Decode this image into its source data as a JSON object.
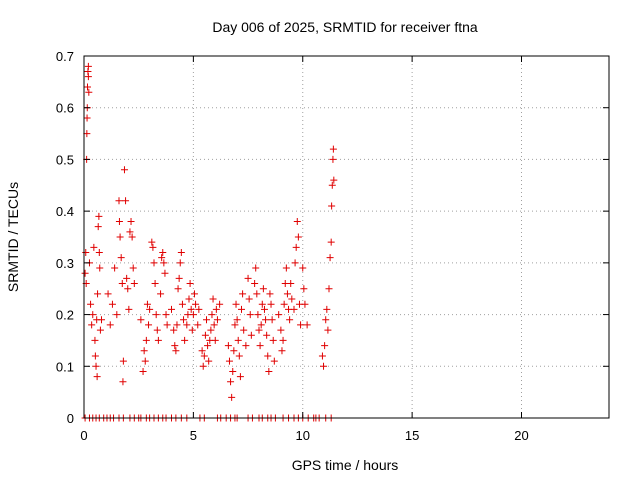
{
  "chart_data": {
    "type": "scatter",
    "title": "Day 006 of 2025, SRMTID for receiver ftna",
    "xlabel": "GPS time / hours",
    "ylabel": "SRMTID / TECUs",
    "xlim": [
      0,
      24
    ],
    "ylim": [
      0,
      0.7
    ],
    "x_ticks": [
      0,
      5,
      10,
      15,
      20
    ],
    "x_tick_labels": [
      "0",
      "5",
      "10",
      "15",
      "20"
    ],
    "y_ticks": [
      0,
      0.1,
      0.2,
      0.3,
      0.4,
      0.5,
      0.6,
      0.7
    ],
    "y_tick_labels": [
      "0",
      "0.1",
      "0.2",
      "0.3",
      "0.4",
      "0.5",
      "0.6",
      "0.7"
    ],
    "grid": true,
    "marker": "+",
    "color": "#e00000",
    "series": [
      {
        "name": "SRMTID",
        "points": [
          [
            0.05,
            0.28
          ],
          [
            0.08,
            0.32
          ],
          [
            0.1,
            0.26
          ],
          [
            0.12,
            0.5
          ],
          [
            0.13,
            0.55
          ],
          [
            0.15,
            0.6
          ],
          [
            0.16,
            0.64
          ],
          [
            0.18,
            0.67
          ],
          [
            0.2,
            0.68
          ],
          [
            0.2,
            0.66
          ],
          [
            0.22,
            0.63
          ],
          [
            0.14,
            0.58
          ],
          [
            0.25,
            0.3
          ],
          [
            0.3,
            0.22
          ],
          [
            0.35,
            0.18
          ],
          [
            0.4,
            0.2
          ],
          [
            0.45,
            0.33
          ],
          [
            0.5,
            0.15
          ],
          [
            0.52,
            0.12
          ],
          [
            0.55,
            0.1
          ],
          [
            0.58,
            0.19
          ],
          [
            0.6,
            0.08
          ],
          [
            0.62,
            0.24
          ],
          [
            0.65,
            0.37
          ],
          [
            0.68,
            0.39
          ],
          [
            0.7,
            0.32
          ],
          [
            0.72,
            0.29
          ],
          [
            0.75,
            0.17
          ],
          [
            0.8,
            0.19
          ],
          [
            1.1,
            0.24
          ],
          [
            1.2,
            0.18
          ],
          [
            1.3,
            0.22
          ],
          [
            1.4,
            0.29
          ],
          [
            1.5,
            0.2
          ],
          [
            1.6,
            0.42
          ],
          [
            1.62,
            0.38
          ],
          [
            1.65,
            0.35
          ],
          [
            1.7,
            0.31
          ],
          [
            1.75,
            0.26
          ],
          [
            1.78,
            0.07
          ],
          [
            1.8,
            0.11
          ],
          [
            1.85,
            0.48
          ],
          [
            1.9,
            0.42
          ],
          [
            1.95,
            0.27
          ],
          [
            2.0,
            0.25
          ],
          [
            2.05,
            0.21
          ],
          [
            2.1,
            0.36
          ],
          [
            2.15,
            0.38
          ],
          [
            2.2,
            0.35
          ],
          [
            2.25,
            0.29
          ],
          [
            2.3,
            0.26
          ],
          [
            2.6,
            0.19
          ],
          [
            2.7,
            0.09
          ],
          [
            2.75,
            0.13
          ],
          [
            2.8,
            0.11
          ],
          [
            2.85,
            0.15
          ],
          [
            2.9,
            0.22
          ],
          [
            2.95,
            0.18
          ],
          [
            3.0,
            0.21
          ],
          [
            3.1,
            0.34
          ],
          [
            3.15,
            0.33
          ],
          [
            3.2,
            0.3
          ],
          [
            3.25,
            0.26
          ],
          [
            3.3,
            0.2
          ],
          [
            3.35,
            0.17
          ],
          [
            3.4,
            0.15
          ],
          [
            3.5,
            0.24
          ],
          [
            3.55,
            0.31
          ],
          [
            3.6,
            0.32
          ],
          [
            3.65,
            0.3
          ],
          [
            3.7,
            0.28
          ],
          [
            3.75,
            0.2
          ],
          [
            3.8,
            0.18
          ],
          [
            4.0,
            0.21
          ],
          [
            4.1,
            0.17
          ],
          [
            4.15,
            0.14
          ],
          [
            4.2,
            0.13
          ],
          [
            4.25,
            0.18
          ],
          [
            4.3,
            0.25
          ],
          [
            4.35,
            0.27
          ],
          [
            4.4,
            0.3
          ],
          [
            4.45,
            0.32
          ],
          [
            4.5,
            0.22
          ],
          [
            4.55,
            0.19
          ],
          [
            4.6,
            0.15
          ],
          [
            4.7,
            0.18
          ],
          [
            4.75,
            0.2
          ],
          [
            4.8,
            0.23
          ],
          [
            4.85,
            0.26
          ],
          [
            4.9,
            0.21
          ],
          [
            4.95,
            0.17
          ],
          [
            5.0,
            0.2
          ],
          [
            5.05,
            0.24
          ],
          [
            5.1,
            0.22
          ],
          [
            5.2,
            0.18
          ],
          [
            5.25,
            0.21
          ],
          [
            5.4,
            0.13
          ],
          [
            5.45,
            0.1
          ],
          [
            5.5,
            0.12
          ],
          [
            5.55,
            0.16
          ],
          [
            5.6,
            0.19
          ],
          [
            5.65,
            0.14
          ],
          [
            5.7,
            0.11
          ],
          [
            5.75,
            0.15
          ],
          [
            5.8,
            0.17
          ],
          [
            5.85,
            0.2
          ],
          [
            5.9,
            0.23
          ],
          [
            5.95,
            0.18
          ],
          [
            6.0,
            0.15
          ],
          [
            6.05,
            0.21
          ],
          [
            6.1,
            0.19
          ],
          [
            6.2,
            0.22
          ],
          [
            6.6,
            0.14
          ],
          [
            6.65,
            0.11
          ],
          [
            6.7,
            0.07
          ],
          [
            6.75,
            0.04
          ],
          [
            6.8,
            0.09
          ],
          [
            6.85,
            0.13
          ],
          [
            6.9,
            0.18
          ],
          [
            6.95,
            0.22
          ],
          [
            7.0,
            0.19
          ],
          [
            7.05,
            0.15
          ],
          [
            7.1,
            0.12
          ],
          [
            7.15,
            0.08
          ],
          [
            7.2,
            0.21
          ],
          [
            7.25,
            0.24
          ],
          [
            7.3,
            0.17
          ],
          [
            7.4,
            0.14
          ],
          [
            7.5,
            0.27
          ],
          [
            7.55,
            0.23
          ],
          [
            7.6,
            0.2
          ],
          [
            7.65,
            0.16
          ],
          [
            7.8,
            0.26
          ],
          [
            7.85,
            0.29
          ],
          [
            7.9,
            0.24
          ],
          [
            7.95,
            0.2
          ],
          [
            8.0,
            0.17
          ],
          [
            8.05,
            0.14
          ],
          [
            8.1,
            0.18
          ],
          [
            8.15,
            0.22
          ],
          [
            8.2,
            0.25
          ],
          [
            8.25,
            0.21
          ],
          [
            8.3,
            0.19
          ],
          [
            8.35,
            0.16
          ],
          [
            8.4,
            0.12
          ],
          [
            8.45,
            0.09
          ],
          [
            8.5,
            0.24
          ],
          [
            8.55,
            0.22
          ],
          [
            8.6,
            0.19
          ],
          [
            8.65,
            0.15
          ],
          [
            8.7,
            0.11
          ],
          [
            8.9,
            0.2
          ],
          [
            9.0,
            0.17
          ],
          [
            9.05,
            0.13
          ],
          [
            9.1,
            0.15
          ],
          [
            9.15,
            0.22
          ],
          [
            9.2,
            0.26
          ],
          [
            9.25,
            0.29
          ],
          [
            9.3,
            0.24
          ],
          [
            9.35,
            0.21
          ],
          [
            9.4,
            0.19
          ],
          [
            9.45,
            0.26
          ],
          [
            9.5,
            0.23
          ],
          [
            9.6,
            0.21
          ],
          [
            9.65,
            0.3
          ],
          [
            9.7,
            0.33
          ],
          [
            9.75,
            0.38
          ],
          [
            9.8,
            0.35
          ],
          [
            9.85,
            0.22
          ],
          [
            9.9,
            0.18
          ],
          [
            10.0,
            0.29
          ],
          [
            10.05,
            0.25
          ],
          [
            10.1,
            0.22
          ],
          [
            10.2,
            0.18
          ],
          [
            10.9,
            0.12
          ],
          [
            10.95,
            0.1
          ],
          [
            11.0,
            0.14
          ],
          [
            11.05,
            0.19
          ],
          [
            11.1,
            0.21
          ],
          [
            11.15,
            0.17
          ],
          [
            11.2,
            0.25
          ],
          [
            11.25,
            0.31
          ],
          [
            11.3,
            0.34
          ],
          [
            11.32,
            0.41
          ],
          [
            11.35,
            0.45
          ],
          [
            11.38,
            0.5
          ],
          [
            11.4,
            0.52
          ],
          [
            11.42,
            0.46
          ],
          [
            0.05,
            0
          ],
          [
            0.25,
            0
          ],
          [
            0.4,
            0
          ],
          [
            0.55,
            0
          ],
          [
            0.7,
            0
          ],
          [
            0.9,
            0
          ],
          [
            1.05,
            0
          ],
          [
            1.2,
            0
          ],
          [
            1.35,
            0
          ],
          [
            1.6,
            0
          ],
          [
            1.8,
            0
          ],
          [
            2.1,
            0
          ],
          [
            2.3,
            0
          ],
          [
            2.5,
            0
          ],
          [
            2.6,
            0
          ],
          [
            2.85,
            0
          ],
          [
            3.0,
            0
          ],
          [
            3.2,
            0
          ],
          [
            3.4,
            0
          ],
          [
            3.6,
            0
          ],
          [
            3.75,
            0
          ],
          [
            4.0,
            0
          ],
          [
            4.2,
            0
          ],
          [
            4.45,
            0
          ],
          [
            4.7,
            0
          ],
          [
            5.3,
            0
          ],
          [
            5.5,
            0
          ],
          [
            6.1,
            0
          ],
          [
            6.25,
            0
          ],
          [
            6.5,
            0
          ],
          [
            6.7,
            0
          ],
          [
            6.9,
            0
          ],
          [
            7.0,
            0
          ],
          [
            7.5,
            0
          ],
          [
            7.7,
            0
          ],
          [
            8.0,
            0
          ],
          [
            8.15,
            0
          ],
          [
            8.4,
            0
          ],
          [
            8.55,
            0
          ],
          [
            8.75,
            0
          ],
          [
            9.1,
            0
          ],
          [
            9.35,
            0
          ],
          [
            9.6,
            0
          ],
          [
            9.8,
            0
          ],
          [
            10.0,
            0
          ],
          [
            10.25,
            0
          ],
          [
            10.5,
            0
          ],
          [
            10.6,
            0
          ],
          [
            10.75,
            0
          ],
          [
            11.05,
            0
          ],
          [
            11.3,
            0
          ]
        ]
      }
    ]
  }
}
